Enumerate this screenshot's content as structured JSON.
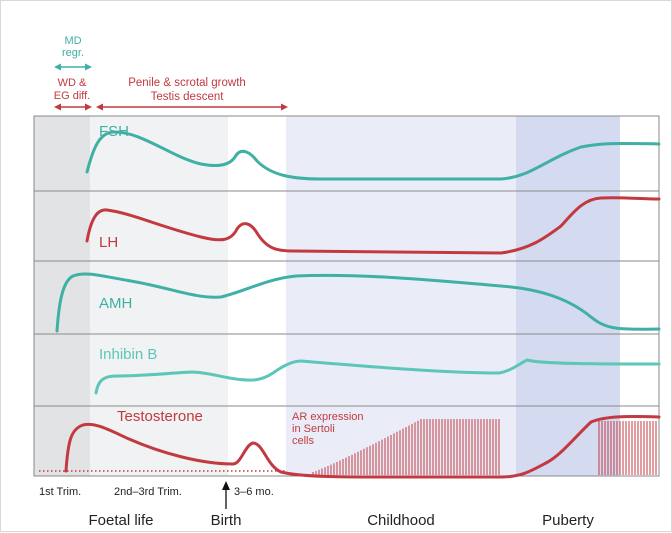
{
  "colors": {
    "teal": "#3fb0a3",
    "teal_light": "#5cc6b8",
    "red": "#c23a3f",
    "foetal_dark": "#e2e3e5",
    "foetal_light": "#f1f2f3",
    "childhood": "#eaedf8",
    "puberty": "#d4daf0",
    "divider": "#8a8a8a"
  },
  "top_annotations": {
    "md": "MD\nregr.",
    "wd": "WD &\nEG diff.",
    "penile": "Penile & scrotal growth\nTestis descent"
  },
  "panels": [
    {
      "label": "FSH",
      "color_key": "teal"
    },
    {
      "label": "LH",
      "color_key": "red"
    },
    {
      "label": "AMH",
      "color_key": "teal"
    },
    {
      "label": "Inhibin B",
      "color_key": "teal_light"
    },
    {
      "label": "Testosterone",
      "color_key": "red"
    }
  ],
  "ar_annotation": "AR expression\nin Sertoli\ncells",
  "stage_ticks": {
    "first_trim": "1st Trim.",
    "second_third_trim": "2nd–3rd Trim.",
    "three_six_mo": "3–6 mo."
  },
  "periods": {
    "foetal": "Foetal life",
    "birth": "Birth",
    "childhood": "Childhood",
    "puberty": "Puberty"
  }
}
